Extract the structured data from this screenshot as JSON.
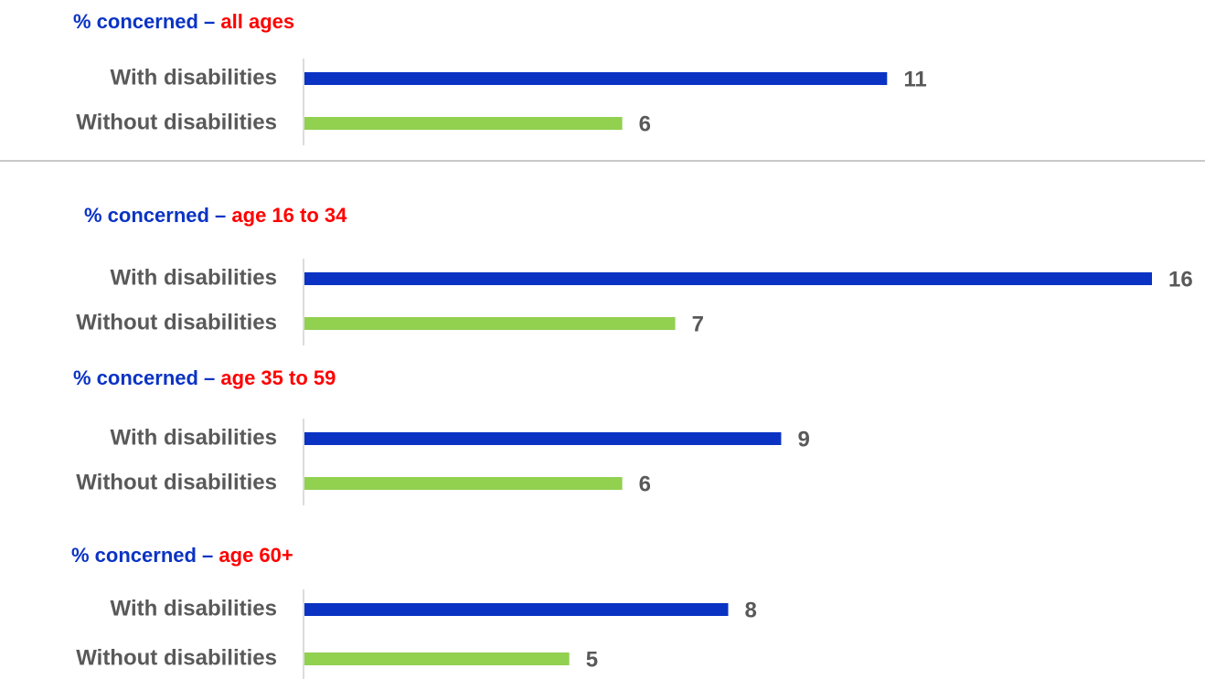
{
  "chart_data": [
    {
      "type": "bar",
      "orientation": "horizontal",
      "title": "% concerned –",
      "title_highlight": "all ages",
      "title_color": "#0a33c4",
      "title_highlight_color": "#ff0000",
      "categories": [
        "With disabilities",
        "Without disabilities"
      ],
      "values": [
        11,
        6
      ],
      "colors": [
        "#0a33c4",
        "#92d050"
      ]
    },
    {
      "type": "bar",
      "orientation": "horizontal",
      "title": "% concerned –",
      "title_highlight": "age 16 to 34",
      "title_color": "#0a33c4",
      "title_highlight_color": "#ff0000",
      "categories": [
        "With disabilities",
        "Without disabilities"
      ],
      "values": [
        16,
        7
      ],
      "colors": [
        "#0a33c4",
        "#92d050"
      ]
    },
    {
      "type": "bar",
      "orientation": "horizontal",
      "title": "% concerned –",
      "title_highlight": "age 35 to 59",
      "title_color": "#0a33c4",
      "title_highlight_color": "#ff0000",
      "categories": [
        "With disabilities",
        "Without disabilities"
      ],
      "values": [
        9,
        6
      ],
      "colors": [
        "#0a33c4",
        "#92d050"
      ]
    },
    {
      "type": "bar",
      "orientation": "horizontal",
      "title": "% concerned –",
      "title_highlight": "age 60+",
      "title_color": "#0a33c4",
      "title_highlight_color": "#ff0000",
      "categories": [
        "With disabilities",
        "Without disabilities"
      ],
      "values": [
        8,
        5
      ],
      "colors": [
        "#0a33c4",
        "#92d050"
      ]
    }
  ]
}
